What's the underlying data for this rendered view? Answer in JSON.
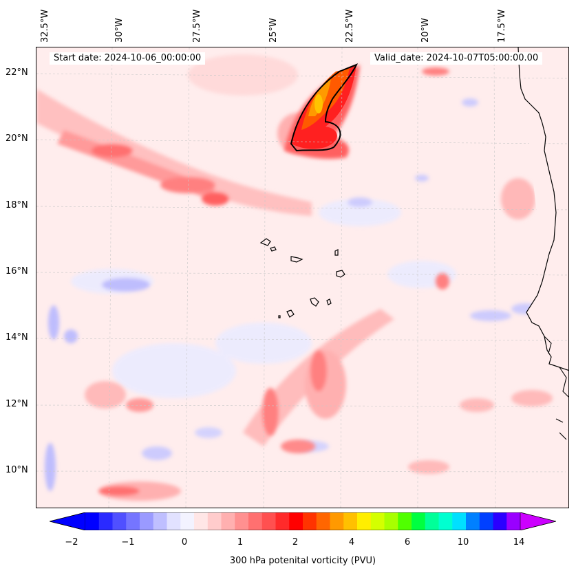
{
  "header": {
    "start_date": "Start date: 2024-10-06_00:00:00",
    "valid_date": "Valid_date: 2024-10-07T05:00:00.00"
  },
  "map": {
    "lon_labels": [
      "32.5°W",
      "30°W",
      "27.5°W",
      "25°W",
      "22.5°W",
      "20°W",
      "17.5°W"
    ],
    "lat_labels": [
      "22°N",
      "20°N",
      "18°N",
      "16°N",
      "14°N",
      "12°N",
      "10°N"
    ],
    "background_color": "#ffeded",
    "coastline_color": "#000000"
  },
  "colorbar": {
    "label": "300 hPa potenital vorticity (PVU)",
    "ticks": [
      "−2",
      "−1",
      "0",
      "1",
      "2",
      "4",
      "6",
      "10",
      "14"
    ],
    "colors": [
      "#0000ff",
      "#2a2aff",
      "#5050ff",
      "#7575ff",
      "#9a9aff",
      "#bfbfff",
      "#e2e2ff",
      "#f3f3ff",
      "#ffe6e6",
      "#ffcccc",
      "#ffb0b0",
      "#ff9090",
      "#ff7070",
      "#ff5050",
      "#ff2a2a",
      "#ff0000",
      "#ff3300",
      "#ff6600",
      "#ff9900",
      "#ffc000",
      "#ffee00",
      "#d4ff00",
      "#a8ff00",
      "#50ff00",
      "#00ff40",
      "#00ff99",
      "#00ffd0",
      "#00e0ff",
      "#0080ff",
      "#0040ff",
      "#2a00ff",
      "#9900ff"
    ],
    "extend_low_color": "#0000ff",
    "extend_high_color": "#cc00ff"
  }
}
